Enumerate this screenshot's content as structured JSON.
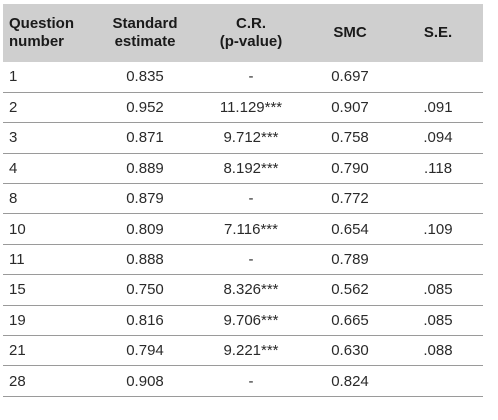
{
  "table": {
    "headers": {
      "question_line1": "Question",
      "question_line2": "number",
      "standard_line1": "Standard",
      "standard_line2": "estimate",
      "cr_line1": "C.R.",
      "cr_line2": "(p-value)",
      "smc": "SMC",
      "se": "S.E."
    },
    "rows": [
      {
        "q": "1",
        "est": "0.835",
        "cr": "-",
        "smc": "0.697",
        "se": ""
      },
      {
        "q": "2",
        "est": "0.952",
        "cr": "11.129***",
        "smc": "0.907",
        "se": ".091"
      },
      {
        "q": "3",
        "est": "0.871",
        "cr": "9.712***",
        "smc": "0.758",
        "se": ".094"
      },
      {
        "q": "4",
        "est": "0.889",
        "cr": "8.192***",
        "smc": "0.790",
        "se": ".118"
      },
      {
        "q": "8",
        "est": "0.879",
        "cr": "-",
        "smc": "0.772",
        "se": ""
      },
      {
        "q": "10",
        "est": "0.809",
        "cr": "7.116***",
        "smc": "0.654",
        "se": ".109"
      },
      {
        "q": "11",
        "est": "0.888",
        "cr": "-",
        "smc": "0.789",
        "se": ""
      },
      {
        "q": "15",
        "est": "0.750",
        "cr": "8.326***",
        "smc": "0.562",
        "se": ".085"
      },
      {
        "q": "19",
        "est": "0.816",
        "cr": "9.706***",
        "smc": "0.665",
        "se": ".085"
      },
      {
        "q": "21",
        "est": "0.794",
        "cr": "9.221***",
        "smc": "0.630",
        "se": ".088"
      },
      {
        "q": "28",
        "est": "0.908",
        "cr": "-",
        "smc": "0.824",
        "se": ""
      }
    ]
  }
}
